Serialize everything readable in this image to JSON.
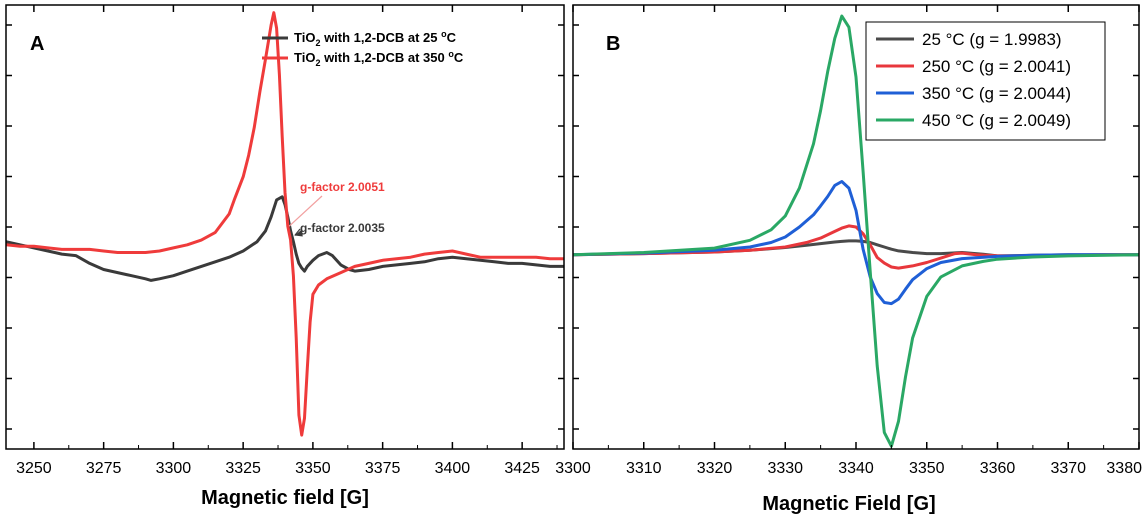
{
  "chart_data": [
    {
      "panel": "A",
      "type": "line",
      "title": "",
      "xlabel": "Magnetic field [G]",
      "ylabel": "",
      "xlim": [
        3240,
        3440
      ],
      "ylim": [
        -13.2,
        15.5
      ],
      "xticks": [
        3250,
        3275,
        3300,
        3325,
        3350,
        3375,
        3400,
        3425
      ],
      "grid": false,
      "legend_position": "top-right",
      "series": [
        {
          "name": "TiO2 with 1,2-DCB at 25 °C",
          "legend_parts": [
            "TiO",
            "2",
            " with 1,2-DCB at 25 ",
            "o",
            "C"
          ],
          "color": "#3a3a3a",
          "x": [
            3240,
            3245,
            3250,
            3255,
            3260,
            3265,
            3270,
            3275,
            3280,
            3285,
            3290,
            3292,
            3295,
            3300,
            3305,
            3310,
            3315,
            3320,
            3325,
            3330,
            3333,
            3335,
            3337,
            3339,
            3340,
            3341,
            3342,
            3343,
            3344,
            3345,
            3346,
            3347,
            3348,
            3350,
            3352,
            3355,
            3357,
            3360,
            3363,
            3365,
            3370,
            3375,
            3380,
            3385,
            3390,
            3395,
            3400,
            3405,
            3410,
            3415,
            3420,
            3425,
            3430,
            3435,
            3440
          ],
          "y": [
            0.2,
            0.0,
            -0.2,
            -0.4,
            -0.6,
            -0.7,
            -1.2,
            -1.6,
            -1.8,
            -2.0,
            -2.2,
            -2.3,
            -2.2,
            -2.0,
            -1.7,
            -1.4,
            -1.1,
            -0.8,
            -0.4,
            0.2,
            0.9,
            1.8,
            2.9,
            3.1,
            2.6,
            1.8,
            0.9,
            0.2,
            -0.6,
            -1.2,
            -1.5,
            -1.7,
            -1.4,
            -1.0,
            -0.7,
            -0.5,
            -0.7,
            -1.3,
            -1.6,
            -1.7,
            -1.6,
            -1.4,
            -1.3,
            -1.2,
            -1.1,
            -0.9,
            -0.8,
            -0.9,
            -1.0,
            -1.1,
            -1.2,
            -1.2,
            -1.3,
            -1.4,
            -1.4
          ]
        },
        {
          "name": "TiO2 with 1,2-DCB at 350 °C",
          "legend_parts": [
            "TiO",
            "2",
            " with 1,2-DCB at 350 ",
            "o",
            "C"
          ],
          "color": "#ef3b3b",
          "x": [
            3240,
            3245,
            3250,
            3255,
            3260,
            3265,
            3270,
            3275,
            3280,
            3285,
            3290,
            3295,
            3300,
            3305,
            3310,
            3315,
            3320,
            3322,
            3325,
            3327,
            3329,
            3331,
            3333,
            3335,
            3336,
            3337,
            3338,
            3339,
            3340,
            3341,
            3342,
            3343,
            3344,
            3345,
            3346,
            3347,
            3348,
            3349,
            3350,
            3352,
            3355,
            3360,
            3365,
            3370,
            3375,
            3380,
            3385,
            3390,
            3395,
            3400,
            3405,
            3410,
            3415,
            3420,
            3425,
            3430,
            3435,
            3440
          ],
          "y": [
            0.0,
            -0.1,
            -0.1,
            -0.2,
            -0.3,
            -0.3,
            -0.3,
            -0.4,
            -0.5,
            -0.5,
            -0.5,
            -0.4,
            -0.2,
            0.0,
            0.3,
            0.8,
            2.0,
            3.0,
            4.4,
            5.8,
            7.6,
            9.9,
            12.0,
            14.2,
            15.0,
            14.0,
            11.0,
            7.0,
            3.4,
            1.2,
            0.3,
            -2.0,
            -6.0,
            -11.0,
            -12.3,
            -11.2,
            -8.0,
            -5.0,
            -3.2,
            -2.6,
            -2.2,
            -1.8,
            -1.4,
            -1.2,
            -1.0,
            -0.9,
            -0.8,
            -0.6,
            -0.5,
            -0.4,
            -0.6,
            -0.8,
            -0.8,
            -0.8,
            -0.8,
            -0.8,
            -0.9,
            -0.9
          ]
        }
      ],
      "annotations": [
        {
          "text": "g-factor 2.0051",
          "color": "#ef3b3b",
          "at_x": 3341.5,
          "at_y": 1.2
        },
        {
          "text": "g-factor 2.0035",
          "color": "#3a3a3a",
          "at_x": 3343.5,
          "at_y": 0.6
        }
      ],
      "ytick_count": 9
    },
    {
      "panel": "B",
      "type": "line",
      "title": "",
      "xlabel": "Magnetic Field [G]",
      "ylabel": "",
      "xlim": [
        3300,
        3380
      ],
      "ylim": [
        -3.5,
        4.5
      ],
      "xticks": [
        3300,
        3310,
        3320,
        3330,
        3340,
        3350,
        3360,
        3370,
        3380
      ],
      "grid": false,
      "legend_position": "top-right",
      "series": [
        {
          "name": "25   °C (g = 1.9983)",
          "color": "#4a4a4a",
          "x": [
            3300,
            3310,
            3320,
            3325,
            3330,
            3333,
            3335,
            3337,
            3338,
            3339,
            3340,
            3341,
            3342,
            3343,
            3344,
            3345,
            3346,
            3348,
            3350,
            3352,
            3355,
            3358,
            3360,
            3365,
            3370,
            3375,
            3380
          ],
          "y": [
            0.0,
            0.02,
            0.05,
            0.08,
            0.13,
            0.17,
            0.2,
            0.23,
            0.24,
            0.25,
            0.25,
            0.24,
            0.22,
            0.18,
            0.14,
            0.1,
            0.07,
            0.04,
            0.02,
            0.02,
            0.04,
            0.01,
            -0.02,
            -0.01,
            0.0,
            0.0,
            0.0
          ]
        },
        {
          "name": "250 °C (g = 2.0041)",
          "color": "#e8373c",
          "x": [
            3300,
            3310,
            3320,
            3325,
            3330,
            3333,
            3335,
            3337,
            3338,
            3339,
            3340,
            3341,
            3342,
            3343,
            3344,
            3345,
            3346,
            3348,
            3350,
            3352,
            3354,
            3355,
            3357,
            3360,
            3365,
            3370,
            3375,
            3380
          ],
          "y": [
            0.0,
            0.02,
            0.05,
            0.08,
            0.14,
            0.22,
            0.3,
            0.42,
            0.48,
            0.52,
            0.5,
            0.38,
            0.18,
            -0.05,
            -0.15,
            -0.22,
            -0.24,
            -0.2,
            -0.14,
            -0.06,
            0.02,
            0.03,
            0.0,
            -0.02,
            -0.02,
            -0.01,
            0.0,
            0.0
          ]
        },
        {
          "name": "350 °C (g = 2.0044)",
          "color": "#1f5fd6",
          "x": [
            3300,
            3310,
            3320,
            3325,
            3328,
            3330,
            3332,
            3334,
            3335,
            3336,
            3337,
            3338,
            3339,
            3340,
            3341,
            3342,
            3343,
            3344,
            3345,
            3346,
            3347,
            3348,
            3350,
            3352,
            3355,
            3360,
            3365,
            3370,
            3380
          ],
          "y": [
            0.0,
            0.03,
            0.08,
            0.14,
            0.22,
            0.32,
            0.5,
            0.72,
            0.88,
            1.05,
            1.25,
            1.32,
            1.2,
            0.8,
            0.1,
            -0.4,
            -0.7,
            -0.86,
            -0.88,
            -0.8,
            -0.62,
            -0.45,
            -0.25,
            -0.14,
            -0.07,
            -0.03,
            -0.01,
            0.0,
            0.0
          ]
        },
        {
          "name": "450 °C (g = 2.0049)",
          "color": "#2aa865",
          "x": [
            3300,
            3310,
            3320,
            3325,
            3328,
            3330,
            3332,
            3334,
            3335,
            3336,
            3337,
            3338,
            3339,
            3340,
            3341,
            3342,
            3343,
            3344,
            3345,
            3346,
            3347,
            3348,
            3350,
            3352,
            3355,
            3358,
            3360,
            3365,
            3370,
            3380
          ],
          "y": [
            0.0,
            0.04,
            0.12,
            0.26,
            0.45,
            0.7,
            1.2,
            2.0,
            2.6,
            3.3,
            3.9,
            4.3,
            4.1,
            3.2,
            1.5,
            -0.3,
            -2.0,
            -3.2,
            -3.45,
            -3.0,
            -2.2,
            -1.5,
            -0.75,
            -0.4,
            -0.2,
            -0.12,
            -0.08,
            -0.04,
            -0.02,
            0.0
          ]
        }
      ],
      "ytick_count": 9
    }
  ]
}
